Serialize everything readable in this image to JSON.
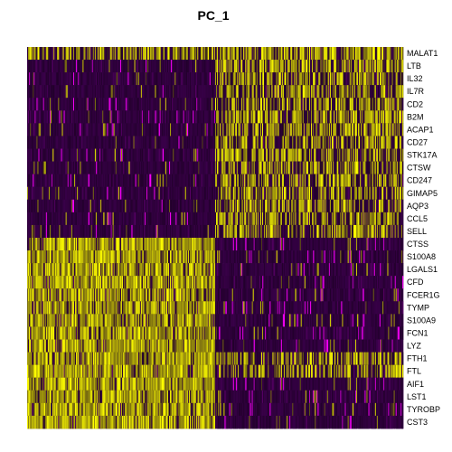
{
  "chart_data": {
    "type": "heatmap",
    "title": "PC_1",
    "rows": [
      "MALAT1",
      "LTB",
      "IL32",
      "IL7R",
      "CD2",
      "B2M",
      "ACAP1",
      "CD27",
      "STK17A",
      "CTSW",
      "CD247",
      "GIMAP5",
      "AQP3",
      "CCL5",
      "SELL",
      "CTSS",
      "S100A8",
      "LGALS1",
      "CFD",
      "FCER1G",
      "TYMP",
      "S100A9",
      "FCN1",
      "LYZ",
      "FTH1",
      "FTL",
      "AIF1",
      "LST1",
      "TYROBP",
      "CST3"
    ],
    "column_groups": [
      {
        "name": "",
        "n_cells": 200
      },
      {
        "name": "",
        "n_cells": 200
      }
    ],
    "mean_scaled_expression": [
      [
        0.62,
        0.74
      ],
      [
        0.08,
        0.66
      ],
      [
        0.06,
        0.62
      ],
      [
        0.06,
        0.56
      ],
      [
        0.08,
        0.55
      ],
      [
        0.12,
        0.6
      ],
      [
        0.07,
        0.58
      ],
      [
        0.06,
        0.52
      ],
      [
        0.16,
        0.6
      ],
      [
        0.07,
        0.56
      ],
      [
        0.08,
        0.56
      ],
      [
        0.07,
        0.55
      ],
      [
        0.07,
        0.52
      ],
      [
        0.08,
        0.52
      ],
      [
        0.07,
        0.54
      ],
      [
        0.85,
        0.12
      ],
      [
        0.86,
        0.14
      ],
      [
        0.84,
        0.16
      ],
      [
        0.86,
        0.12
      ],
      [
        0.8,
        0.16
      ],
      [
        0.82,
        0.15
      ],
      [
        0.85,
        0.14
      ],
      [
        0.84,
        0.14
      ],
      [
        0.88,
        0.16
      ],
      [
        0.86,
        0.5
      ],
      [
        0.88,
        0.48
      ],
      [
        0.85,
        0.12
      ],
      [
        0.84,
        0.12
      ],
      [
        0.84,
        0.12
      ],
      [
        0.86,
        0.1
      ]
    ],
    "color_scale": {
      "low": "#ff00ff",
      "mid": "#000000",
      "high": "#ffff00"
    },
    "legend": "none"
  }
}
